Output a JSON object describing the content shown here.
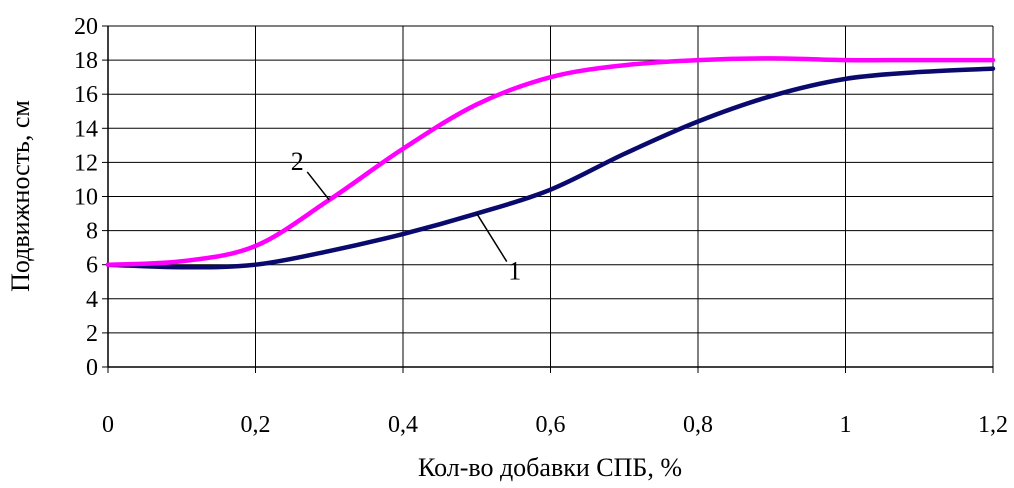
{
  "chart_data": {
    "type": "line",
    "title": "",
    "xlabel": "Кол-во добавки СПБ, %",
    "ylabel": "Подвижность, см",
    "xlim": [
      0,
      1.2
    ],
    "ylim": [
      0,
      20
    ],
    "x_ticks": [
      "0",
      "0,2",
      "0,4",
      "0,6",
      "0,8",
      "1",
      "1,2"
    ],
    "y_ticks": [
      "0",
      "2",
      "4",
      "6",
      "8",
      "10",
      "12",
      "14",
      "16",
      "18",
      "20"
    ],
    "grid": true,
    "series": [
      {
        "name": "1",
        "color": "#0a0a6e",
        "x": [
          0,
          0.1,
          0.2,
          0.3,
          0.4,
          0.5,
          0.6,
          0.7,
          0.8,
          0.9,
          1.0,
          1.1,
          1.2
        ],
        "y": [
          6,
          5.85,
          6,
          6.8,
          7.8,
          9,
          10.4,
          12.5,
          14.4,
          15.9,
          16.9,
          17.3,
          17.5
        ]
      },
      {
        "name": "2",
        "color": "#ff00ff",
        "x": [
          0,
          0.1,
          0.2,
          0.3,
          0.4,
          0.5,
          0.6,
          0.7,
          0.8,
          0.9,
          1.0,
          1.1,
          1.2
        ],
        "y": [
          6,
          6.2,
          7.1,
          9.8,
          12.8,
          15.4,
          17.0,
          17.7,
          18.0,
          18.1,
          18.0,
          18.0,
          18.0
        ]
      }
    ]
  }
}
